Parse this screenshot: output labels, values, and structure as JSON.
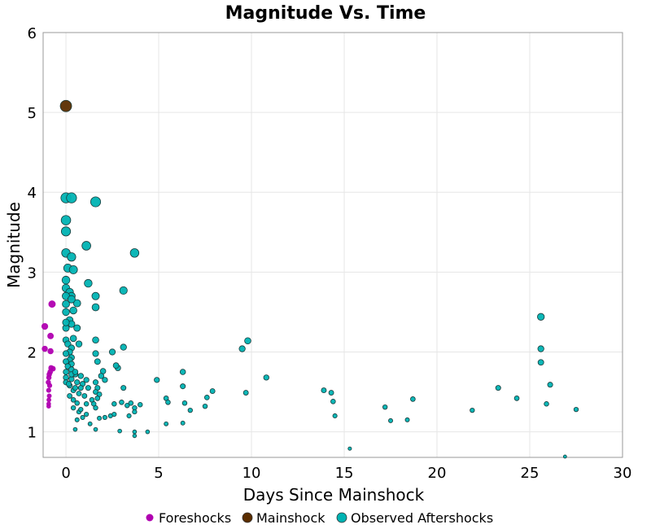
{
  "chart_data": {
    "type": "scatter",
    "title": "Magnitude Vs. Time",
    "xlabel": "Days Since Mainshock",
    "ylabel": "Magnitude",
    "xlim": [
      -1.23,
      30
    ],
    "ylim": [
      0.68,
      6
    ],
    "xticks": [
      0,
      5,
      10,
      15,
      20,
      25,
      30
    ],
    "yticks": [
      1,
      2,
      3,
      4,
      5,
      6
    ],
    "grid": true,
    "legend_position": "bottom",
    "series": [
      {
        "name": "Foreshocks",
        "color": "#b000b0",
        "points": [
          [
            -1.14,
            2.32
          ],
          [
            -1.14,
            2.04
          ],
          [
            -0.83,
            2.2
          ],
          [
            -0.83,
            2.01
          ],
          [
            -0.75,
            2.6
          ],
          [
            -0.7,
            1.79
          ],
          [
            -0.8,
            1.8
          ],
          [
            -0.85,
            1.75
          ],
          [
            -0.9,
            1.72
          ],
          [
            -0.92,
            1.68
          ],
          [
            -0.95,
            1.62
          ],
          [
            -0.88,
            1.58
          ],
          [
            -0.93,
            1.52
          ],
          [
            -0.9,
            1.45
          ],
          [
            -0.92,
            1.4
          ],
          [
            -0.93,
            1.35
          ],
          [
            -0.93,
            1.32
          ]
        ]
      },
      {
        "name": "Mainshock",
        "color": "#5a2d00",
        "points": [
          [
            0,
            5.08
          ]
        ]
      },
      {
        "name": "Observed Aftershocks",
        "color": "#00b3b3",
        "points": [
          [
            0,
            3.93
          ],
          [
            0.3,
            3.93
          ],
          [
            1.6,
            3.88
          ],
          [
            0,
            3.65
          ],
          [
            0,
            3.51
          ],
          [
            1.1,
            3.33
          ],
          [
            0,
            3.24
          ],
          [
            0.3,
            3.19
          ],
          [
            3.7,
            3.24
          ],
          [
            0.1,
            3.05
          ],
          [
            0.4,
            3.03
          ],
          [
            1.2,
            2.86
          ],
          [
            3.1,
            2.77
          ],
          [
            0,
            2.9
          ],
          [
            0,
            2.8
          ],
          [
            0.2,
            2.75
          ],
          [
            0.3,
            2.7
          ],
          [
            0,
            2.7
          ],
          [
            0.6,
            2.61
          ],
          [
            1.6,
            2.7
          ],
          [
            1.6,
            2.56
          ],
          [
            0,
            2.6
          ],
          [
            0.4,
            2.52
          ],
          [
            0.3,
            2.66
          ],
          [
            0,
            2.5
          ],
          [
            0.2,
            2.4
          ],
          [
            0.3,
            2.35
          ],
          [
            0.6,
            2.3
          ],
          [
            0,
            2.3
          ],
          [
            0,
            2.37
          ],
          [
            0.4,
            2.17
          ],
          [
            1.6,
            2.15
          ],
          [
            3.1,
            2.06
          ],
          [
            2.5,
            2.0
          ],
          [
            0,
            2.15
          ],
          [
            0.1,
            2.1
          ],
          [
            0.3,
            2.05
          ],
          [
            0.7,
            2.1
          ],
          [
            0.2,
            2.0
          ],
          [
            0,
            1.98
          ],
          [
            0.3,
            1.93
          ],
          [
            1.6,
            1.98
          ],
          [
            0.2,
            1.9
          ],
          [
            0,
            1.88
          ],
          [
            0.3,
            1.85
          ],
          [
            2.8,
            1.8
          ],
          [
            1.7,
            1.88
          ],
          [
            2.0,
            1.76
          ],
          [
            2.7,
            1.83
          ],
          [
            0.1,
            1.82
          ],
          [
            0.3,
            1.78
          ],
          [
            0,
            1.75
          ],
          [
            0.5,
            1.72
          ],
          [
            0.8,
            1.7
          ],
          [
            1.1,
            1.65
          ],
          [
            1.9,
            1.7
          ],
          [
            2.1,
            1.65
          ],
          [
            0,
            1.68
          ],
          [
            0.3,
            1.66
          ],
          [
            0.6,
            1.62
          ],
          [
            0.9,
            1.6
          ],
          [
            1.2,
            1.55
          ],
          [
            1.6,
            1.62
          ],
          [
            1.7,
            1.55
          ],
          [
            1.6,
            1.5
          ],
          [
            1.8,
            1.47
          ],
          [
            0,
            1.62
          ],
          [
            0.2,
            1.58
          ],
          [
            0.4,
            1.52
          ],
          [
            0.7,
            1.48
          ],
          [
            1.0,
            1.45
          ],
          [
            1.4,
            1.4
          ],
          [
            1.7,
            1.42
          ],
          [
            0.2,
            1.45
          ],
          [
            0.4,
            1.4
          ],
          [
            0.6,
            1.36
          ],
          [
            1.1,
            1.35
          ],
          [
            1.5,
            1.35
          ],
          [
            2.6,
            1.35
          ],
          [
            3.0,
            1.37
          ],
          [
            3.3,
            1.33
          ],
          [
            3.5,
            1.36
          ],
          [
            3.7,
            1.3
          ],
          [
            4.0,
            1.34
          ],
          [
            0.4,
            1.3
          ],
          [
            0.7,
            1.25
          ],
          [
            1.1,
            1.22
          ],
          [
            1.6,
            1.3
          ],
          [
            2.1,
            1.18
          ],
          [
            2.4,
            1.2
          ],
          [
            2.6,
            1.22
          ],
          [
            3.4,
            1.2
          ],
          [
            3.7,
            1.25
          ],
          [
            3.1,
            1.55
          ],
          [
            0.8,
            1.28
          ],
          [
            0.6,
            1.15
          ],
          [
            1.3,
            1.1
          ],
          [
            0.9,
            1.18
          ],
          [
            1.8,
            1.17
          ],
          [
            2.9,
            1.01
          ],
          [
            3.7,
            1.0
          ],
          [
            4.4,
            1.0
          ],
          [
            3.7,
            0.95
          ],
          [
            0.5,
            1.03
          ],
          [
            1.6,
            1.03
          ],
          [
            0.3,
            1.72
          ],
          [
            0.5,
            1.75
          ],
          [
            0.15,
            1.6
          ],
          [
            0.5,
            1.55
          ],
          [
            0.8,
            1.55
          ],
          [
            4.9,
            1.65
          ],
          [
            5.4,
            1.42
          ],
          [
            5.5,
            1.37
          ],
          [
            5.4,
            1.1
          ],
          [
            6.3,
            1.75
          ],
          [
            6.3,
            1.57
          ],
          [
            6.4,
            1.36
          ],
          [
            6.7,
            1.27
          ],
          [
            7.5,
            1.32
          ],
          [
            7.6,
            1.43
          ],
          [
            7.9,
            1.51
          ],
          [
            6.3,
            1.11
          ],
          [
            9.5,
            2.04
          ],
          [
            9.8,
            2.14
          ],
          [
            9.7,
            1.49
          ],
          [
            10.8,
            1.68
          ],
          [
            13.9,
            1.52
          ],
          [
            14.3,
            1.49
          ],
          [
            14.4,
            1.38
          ],
          [
            14.5,
            1.2
          ],
          [
            15.3,
            0.79
          ],
          [
            17.2,
            1.31
          ],
          [
            17.5,
            1.14
          ],
          [
            18.4,
            1.15
          ],
          [
            18.7,
            1.41
          ],
          [
            21.9,
            1.27
          ],
          [
            23.3,
            1.55
          ],
          [
            24.3,
            1.42
          ],
          [
            25.6,
            2.44
          ],
          [
            25.6,
            2.04
          ],
          [
            25.6,
            1.87
          ],
          [
            26.1,
            1.59
          ],
          [
            25.9,
            1.35
          ],
          [
            27.5,
            1.28
          ],
          [
            26.9,
            0.69
          ]
        ]
      }
    ]
  }
}
